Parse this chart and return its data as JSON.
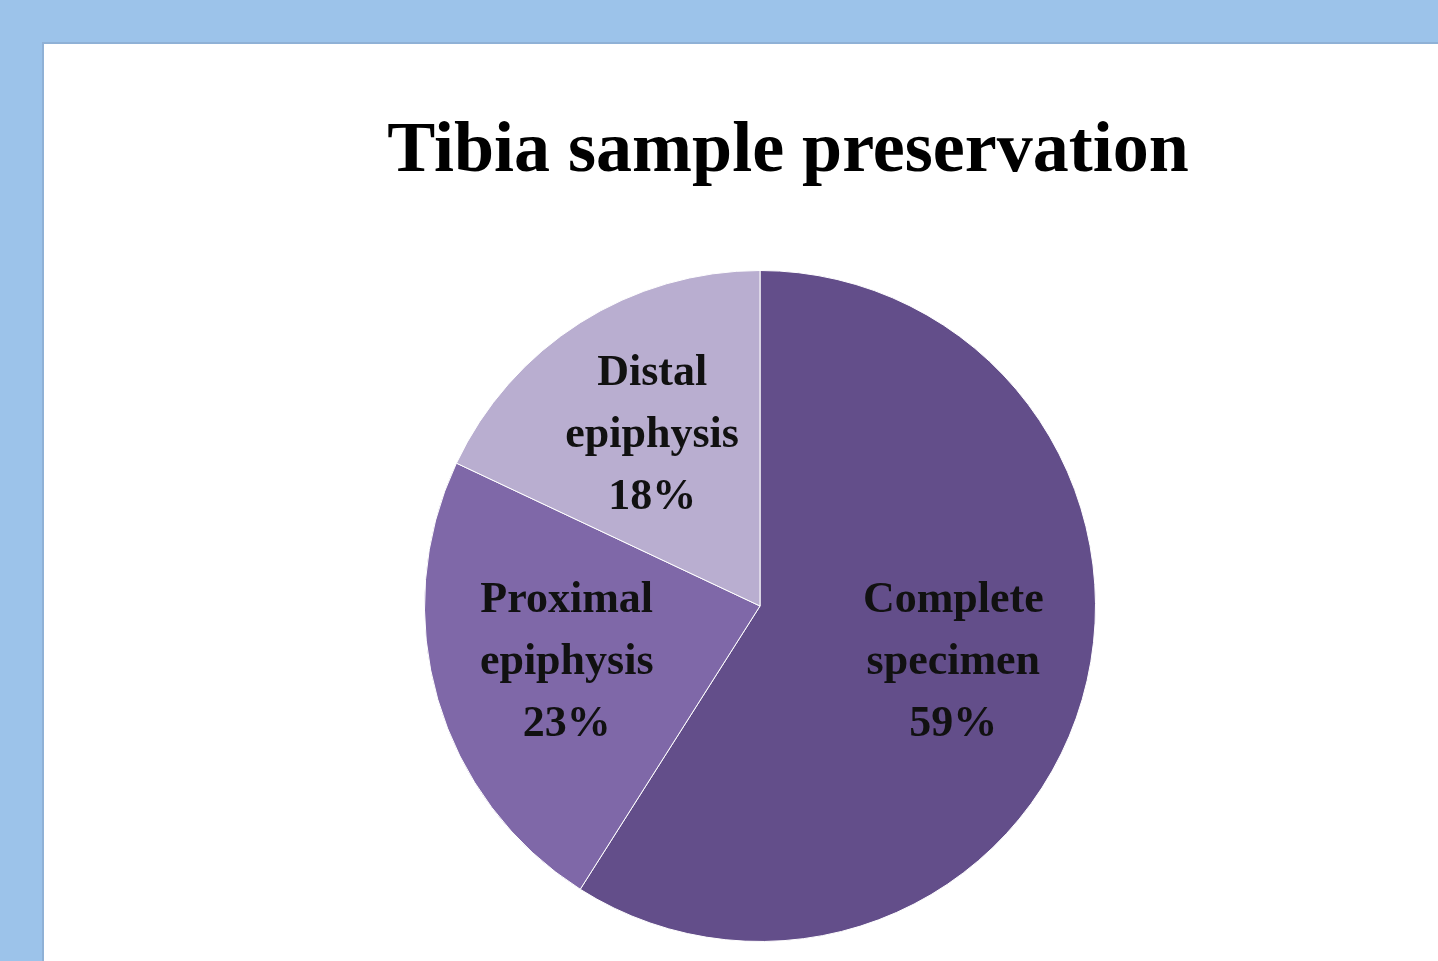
{
  "chart_data": {
    "type": "pie",
    "title": "Tibia sample preservation",
    "categories": [
      "Complete specimen",
      "Proximal epiphysis",
      "Distal epiphysis"
    ],
    "values": [
      59,
      23,
      18
    ],
    "colors": [
      "#634e8a",
      "#7f68a8",
      "#b9aed0"
    ],
    "value_labels": [
      "59%",
      "23%",
      "18%"
    ],
    "legend": false
  }
}
